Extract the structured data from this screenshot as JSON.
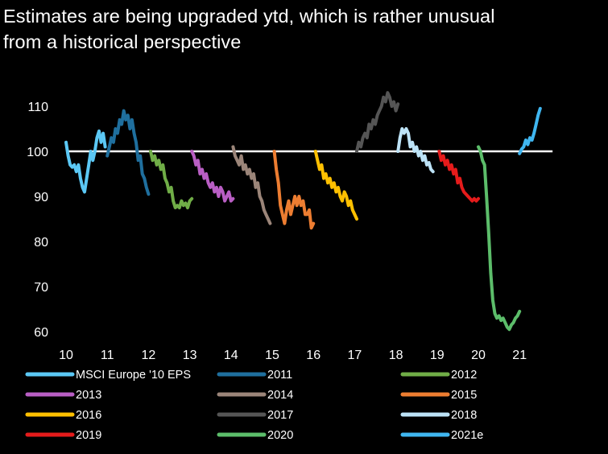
{
  "chart_data": {
    "type": "line",
    "title": [
      "Estimates are being upgraded ytd, which is rather unusual",
      "from a historical perspective"
    ],
    "xlabel": "",
    "ylabel": "",
    "xlim": [
      10,
      21.8
    ],
    "ylim": [
      59,
      113
    ],
    "x_ticks": [
      "10",
      "11",
      "12",
      "13",
      "14",
      "15",
      "16",
      "17",
      "18",
      "19",
      "20",
      "21"
    ],
    "y_ticks": [
      "110",
      "100",
      "90",
      "80",
      "70",
      "60"
    ],
    "y_tick_values": [
      110,
      100,
      90,
      80,
      70,
      60
    ],
    "reference_line": {
      "y": 100,
      "color": "#ffffff",
      "x_range": [
        10,
        21.8
      ]
    },
    "legend": {
      "placement": "bottom",
      "columns": 3
    },
    "series": [
      {
        "name": "MSCI Europe '10 EPS",
        "color": "#5bc8f5",
        "points": [
          [
            10.0,
            102
          ],
          [
            10.05,
            99
          ],
          [
            10.1,
            97
          ],
          [
            10.15,
            96.5
          ],
          [
            10.2,
            97
          ],
          [
            10.25,
            95.5
          ],
          [
            10.3,
            97
          ],
          [
            10.35,
            94
          ],
          [
            10.4,
            92
          ],
          [
            10.45,
            91
          ],
          [
            10.5,
            94
          ],
          [
            10.55,
            97
          ],
          [
            10.6,
            100
          ],
          [
            10.65,
            98
          ],
          [
            10.7,
            100
          ],
          [
            10.75,
            103
          ],
          [
            10.8,
            104.5
          ],
          [
            10.85,
            102
          ],
          [
            10.9,
            104
          ],
          [
            10.95,
            101
          ]
        ]
      },
      {
        "name": "2011",
        "color": "#1f6f9e",
        "points": [
          [
            11.0,
            99
          ],
          [
            11.05,
            101
          ],
          [
            11.1,
            103
          ],
          [
            11.15,
            102
          ],
          [
            11.2,
            105
          ],
          [
            11.25,
            104
          ],
          [
            11.3,
            107
          ],
          [
            11.35,
            106
          ],
          [
            11.4,
            109
          ],
          [
            11.45,
            107
          ],
          [
            11.5,
            108
          ],
          [
            11.55,
            105
          ],
          [
            11.6,
            107
          ],
          [
            11.65,
            104
          ],
          [
            11.7,
            102
          ],
          [
            11.75,
            98
          ],
          [
            11.8,
            99
          ],
          [
            11.85,
            95
          ],
          [
            11.9,
            94
          ],
          [
            11.95,
            92
          ],
          [
            12.0,
            90.5
          ]
        ]
      },
      {
        "name": "2012",
        "color": "#70ad47",
        "points": [
          [
            12.05,
            100
          ],
          [
            12.1,
            98
          ],
          [
            12.15,
            99
          ],
          [
            12.2,
            97
          ],
          [
            12.25,
            98
          ],
          [
            12.3,
            96
          ],
          [
            12.35,
            97
          ],
          [
            12.4,
            94
          ],
          [
            12.45,
            93
          ],
          [
            12.5,
            91
          ],
          [
            12.55,
            92
          ],
          [
            12.6,
            89
          ],
          [
            12.65,
            87.5
          ],
          [
            12.7,
            88
          ],
          [
            12.75,
            87.5
          ],
          [
            12.8,
            89
          ],
          [
            12.85,
            88
          ],
          [
            12.9,
            88.5
          ],
          [
            12.95,
            87.5
          ],
          [
            13.0,
            89
          ],
          [
            13.05,
            89.5
          ]
        ]
      },
      {
        "name": "2013",
        "color": "#b95ec4",
        "points": [
          [
            13.05,
            100
          ],
          [
            13.1,
            99
          ],
          [
            13.15,
            97
          ],
          [
            13.2,
            98
          ],
          [
            13.25,
            95
          ],
          [
            13.3,
            96
          ],
          [
            13.35,
            94
          ],
          [
            13.4,
            95
          ],
          [
            13.45,
            93
          ],
          [
            13.5,
            92
          ],
          [
            13.55,
            93
          ],
          [
            13.6,
            91
          ],
          [
            13.65,
            92
          ],
          [
            13.7,
            90
          ],
          [
            13.75,
            92
          ],
          [
            13.8,
            91
          ],
          [
            13.85,
            89
          ],
          [
            13.9,
            90
          ],
          [
            13.95,
            91
          ],
          [
            14.0,
            89
          ],
          [
            14.05,
            89.5
          ]
        ]
      },
      {
        "name": "2014",
        "color": "#9b8579",
        "points": [
          [
            14.05,
            101
          ],
          [
            14.1,
            99
          ],
          [
            14.15,
            98
          ],
          [
            14.2,
            97
          ],
          [
            14.25,
            99
          ],
          [
            14.3,
            96
          ],
          [
            14.35,
            97
          ],
          [
            14.4,
            95
          ],
          [
            14.45,
            96
          ],
          [
            14.5,
            94
          ],
          [
            14.55,
            95
          ],
          [
            14.6,
            92
          ],
          [
            14.65,
            93
          ],
          [
            14.7,
            90
          ],
          [
            14.75,
            89
          ],
          [
            14.8,
            87
          ],
          [
            14.85,
            86
          ],
          [
            14.9,
            85
          ],
          [
            14.95,
            84
          ]
        ]
      },
      {
        "name": "2015",
        "color": "#ed7d31",
        "points": [
          [
            15.05,
            100
          ],
          [
            15.1,
            96
          ],
          [
            15.15,
            93
          ],
          [
            15.2,
            88
          ],
          [
            15.25,
            86
          ],
          [
            15.3,
            84
          ],
          [
            15.35,
            87
          ],
          [
            15.4,
            89
          ],
          [
            15.45,
            86
          ],
          [
            15.5,
            88
          ],
          [
            15.55,
            90
          ],
          [
            15.6,
            88
          ],
          [
            15.65,
            90
          ],
          [
            15.7,
            88
          ],
          [
            15.75,
            89
          ],
          [
            15.8,
            86
          ],
          [
            15.85,
            86
          ],
          [
            15.9,
            87
          ],
          [
            15.95,
            83
          ],
          [
            16.0,
            84
          ]
        ]
      },
      {
        "name": "2016",
        "color": "#ffc000",
        "points": [
          [
            16.05,
            100
          ],
          [
            16.1,
            98
          ],
          [
            16.15,
            96
          ],
          [
            16.2,
            97
          ],
          [
            16.25,
            94
          ],
          [
            16.3,
            95
          ],
          [
            16.35,
            93
          ],
          [
            16.4,
            94
          ],
          [
            16.45,
            92
          ],
          [
            16.5,
            93
          ],
          [
            16.55,
            91
          ],
          [
            16.6,
            92
          ],
          [
            16.65,
            90
          ],
          [
            16.7,
            89
          ],
          [
            16.75,
            91
          ],
          [
            16.8,
            90
          ],
          [
            16.85,
            88
          ],
          [
            16.9,
            89
          ],
          [
            16.95,
            87
          ],
          [
            17.0,
            86
          ],
          [
            17.05,
            85
          ]
        ]
      },
      {
        "name": "2017",
        "color": "#555555",
        "points": [
          [
            17.05,
            100
          ],
          [
            17.1,
            102
          ],
          [
            17.15,
            101
          ],
          [
            17.2,
            103
          ],
          [
            17.25,
            104
          ],
          [
            17.3,
            103
          ],
          [
            17.35,
            106
          ],
          [
            17.4,
            105
          ],
          [
            17.45,
            107
          ],
          [
            17.5,
            106
          ],
          [
            17.55,
            108
          ],
          [
            17.6,
            109
          ],
          [
            17.65,
            110
          ],
          [
            17.7,
            112
          ],
          [
            17.75,
            111
          ],
          [
            17.8,
            113
          ],
          [
            17.85,
            112
          ],
          [
            17.9,
            110
          ],
          [
            17.95,
            111
          ],
          [
            18.0,
            109
          ],
          [
            18.05,
            110.5
          ]
        ]
      },
      {
        "name": "2018",
        "color": "#bde3f7",
        "points": [
          [
            18.05,
            100
          ],
          [
            18.1,
            103
          ],
          [
            18.15,
            105
          ],
          [
            18.2,
            104
          ],
          [
            18.25,
            105
          ],
          [
            18.3,
            104
          ],
          [
            18.35,
            101
          ],
          [
            18.4,
            102
          ],
          [
            18.45,
            100
          ],
          [
            18.5,
            101
          ],
          [
            18.55,
            99
          ],
          [
            18.6,
            100
          ],
          [
            18.65,
            98
          ],
          [
            18.7,
            99
          ],
          [
            18.75,
            97
          ],
          [
            18.8,
            97.5
          ],
          [
            18.85,
            96
          ],
          [
            18.9,
            95.5
          ]
        ]
      },
      {
        "name": "2019",
        "color": "#e51b1b",
        "points": [
          [
            19.05,
            100
          ],
          [
            19.1,
            98
          ],
          [
            19.15,
            99
          ],
          [
            19.2,
            97
          ],
          [
            19.25,
            98
          ],
          [
            19.3,
            96
          ],
          [
            19.35,
            97
          ],
          [
            19.4,
            95
          ],
          [
            19.45,
            96
          ],
          [
            19.5,
            93
          ],
          [
            19.55,
            94
          ],
          [
            19.6,
            92
          ],
          [
            19.65,
            91
          ],
          [
            19.7,
            90.5
          ],
          [
            19.75,
            90
          ],
          [
            19.8,
            89.5
          ],
          [
            19.85,
            89
          ],
          [
            19.9,
            89.5
          ],
          [
            19.95,
            89
          ],
          [
            20.0,
            89.5
          ]
        ]
      },
      {
        "name": "2020",
        "color": "#5cbd6a",
        "points": [
          [
            20.0,
            101
          ],
          [
            20.05,
            100
          ],
          [
            20.1,
            98
          ],
          [
            20.15,
            97
          ],
          [
            20.2,
            90
          ],
          [
            20.25,
            82
          ],
          [
            20.3,
            73
          ],
          [
            20.35,
            67
          ],
          [
            20.4,
            64
          ],
          [
            20.45,
            63
          ],
          [
            20.5,
            63.5
          ],
          [
            20.55,
            62.5
          ],
          [
            20.6,
            63
          ],
          [
            20.65,
            62
          ],
          [
            20.7,
            61
          ],
          [
            20.75,
            60.5
          ],
          [
            20.8,
            61.5
          ],
          [
            20.85,
            62
          ],
          [
            20.9,
            63
          ],
          [
            20.95,
            63.5
          ],
          [
            21.0,
            64.5
          ]
        ]
      },
      {
        "name": "2021e",
        "color": "#3fb6f0",
        "points": [
          [
            21.0,
            99.5
          ],
          [
            21.05,
            100.5
          ],
          [
            21.1,
            101
          ],
          [
            21.15,
            102.5
          ],
          [
            21.2,
            101.5
          ],
          [
            21.25,
            103
          ],
          [
            21.3,
            102.5
          ],
          [
            21.35,
            104
          ],
          [
            21.4,
            106
          ],
          [
            21.45,
            108
          ],
          [
            21.5,
            109.5
          ]
        ]
      }
    ]
  }
}
